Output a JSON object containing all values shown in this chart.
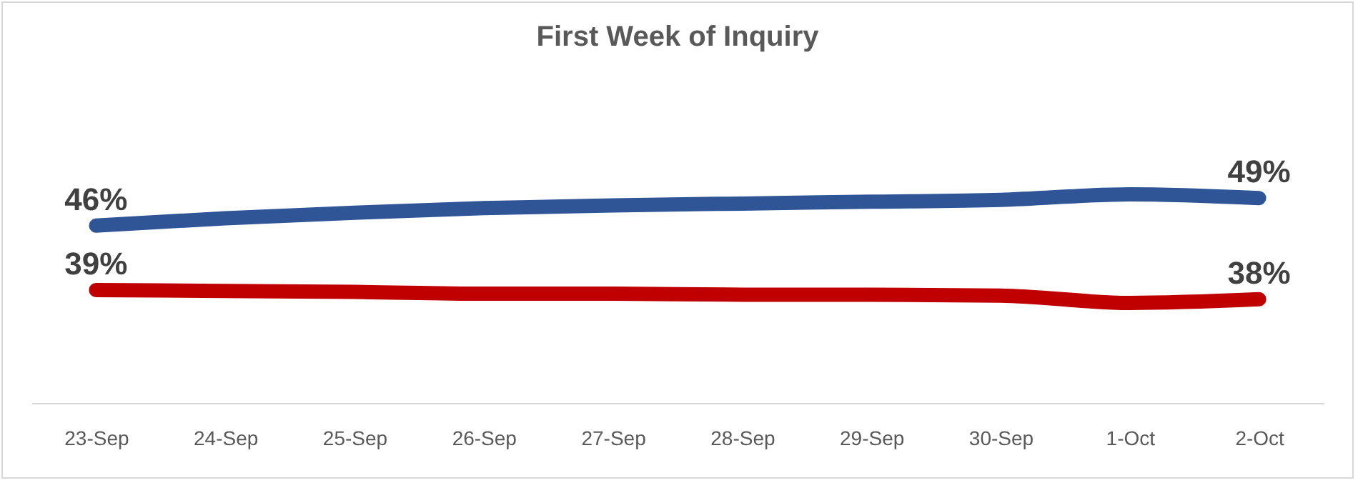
{
  "chart_data": {
    "type": "line",
    "title": "First Week of Inquiry",
    "categories": [
      "23-Sep",
      "24-Sep",
      "25-Sep",
      "26-Sep",
      "27-Sep",
      "28-Sep",
      "29-Sep",
      "30-Sep",
      "1-Oct",
      "2-Oct"
    ],
    "series": [
      {
        "color": "#2f5597",
        "values": [
          46,
          46.8,
          47.4,
          47.9,
          48.2,
          48.4,
          48.6,
          48.8,
          49.4,
          49
        ],
        "value_labels": [
          "46%",
          null,
          null,
          null,
          null,
          null,
          null,
          null,
          null,
          "49%"
        ]
      },
      {
        "color": "#c00000",
        "values": [
          39,
          38.9,
          38.8,
          38.6,
          38.6,
          38.5,
          38.5,
          38.4,
          37.6,
          38
        ],
        "value_labels": [
          "39%",
          null,
          null,
          null,
          null,
          null,
          null,
          null,
          null,
          "38%"
        ]
      }
    ],
    "tick_labels": "x",
    "grid": false,
    "legend": false,
    "line_style": "solid"
  }
}
